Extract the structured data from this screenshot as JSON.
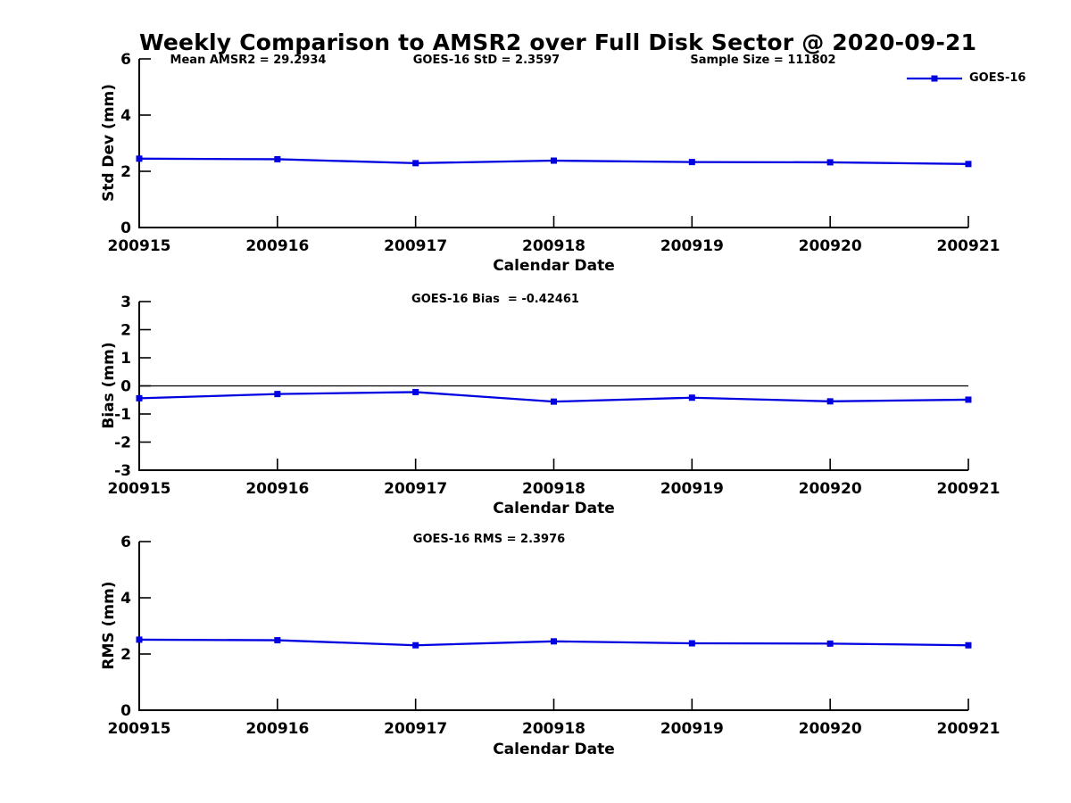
{
  "title": "Weekly Comparison to AMSR2 over Full Disk Sector @ 2020-09-21",
  "legend": {
    "label": "GOES-16"
  },
  "colors": {
    "series": "#0000e0",
    "axis": "#000000",
    "text": "#000000",
    "background": "#ffffff"
  },
  "chart_data": [
    {
      "type": "line",
      "x_categories": [
        "200915",
        "200916",
        "200917",
        "200918",
        "200919",
        "200920",
        "200921"
      ],
      "series": [
        {
          "name": "GOES-16",
          "values": [
            2.45,
            2.43,
            2.29,
            2.38,
            2.33,
            2.32,
            2.26
          ]
        }
      ],
      "xlabel": "Calendar Date",
      "ylabel": "Std Dev (mm)",
      "ylim": [
        0,
        6
      ],
      "yticks": [
        0,
        2,
        4,
        6
      ],
      "annotations": [
        "Mean AMSR2 = 29.2934",
        "GOES-16 StD = 2.3597",
        "Sample Size = 111802"
      ],
      "legend_position": "top-right",
      "marker": "square",
      "grid": false,
      "zero_line": false
    },
    {
      "type": "line",
      "x_categories": [
        "200915",
        "200916",
        "200917",
        "200918",
        "200919",
        "200920",
        "200921"
      ],
      "series": [
        {
          "name": "GOES-16",
          "values": [
            -0.44,
            -0.29,
            -0.22,
            -0.56,
            -0.42,
            -0.55,
            -0.49
          ]
        }
      ],
      "xlabel": "Calendar Date",
      "ylabel": "Bias (mm)",
      "ylim": [
        -3,
        3
      ],
      "yticks": [
        -3,
        -2,
        -1,
        0,
        1,
        2,
        3
      ],
      "annotations": [
        "GOES-16 Bias  = -0.42461"
      ],
      "marker": "square",
      "grid": false,
      "zero_line": true
    },
    {
      "type": "line",
      "x_categories": [
        "200915",
        "200916",
        "200917",
        "200918",
        "200919",
        "200920",
        "200921"
      ],
      "series": [
        {
          "name": "GOES-16",
          "values": [
            2.51,
            2.49,
            2.31,
            2.45,
            2.38,
            2.37,
            2.31
          ]
        }
      ],
      "xlabel": "Calendar Date",
      "ylabel": "RMS (mm)",
      "ylim": [
        0,
        6
      ],
      "yticks": [
        0,
        2,
        4,
        6
      ],
      "annotations": [
        "GOES-16 RMS = 2.3976"
      ],
      "marker": "square",
      "grid": false,
      "zero_line": false
    }
  ]
}
